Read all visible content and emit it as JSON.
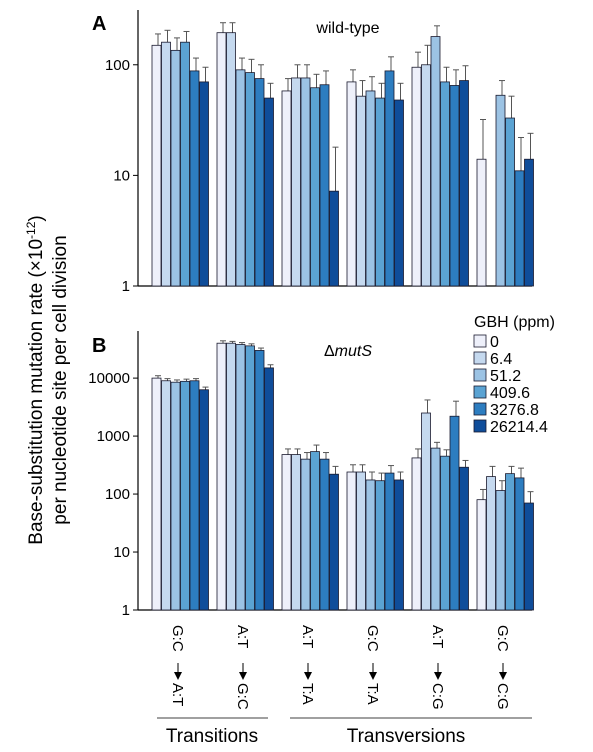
{
  "y_axis_label_line1": "Base-substitution mutation rate (×10",
  "y_axis_label_exp": "-12",
  "y_axis_label_line1_end": ")",
  "y_axis_label_line2": "per nucleotide site per cell division",
  "legend": {
    "title": "GBH (ppm)",
    "entries": [
      "0",
      "6.4",
      "51.2",
      "409.6",
      "3276.8",
      "26214.4"
    ],
    "colors": [
      "#eef0fa",
      "#c5d9ef",
      "#9cc3e4",
      "#5ba3d3",
      "#2d7dc0",
      "#0f4d9a"
    ]
  },
  "x_categories": [
    {
      "from": "G:C",
      "to": "A:T"
    },
    {
      "from": "A:T",
      "to": "G:C"
    },
    {
      "from": "A:T",
      "to": "T:A"
    },
    {
      "from": "G:C",
      "to": "T:A"
    },
    {
      "from": "A:T",
      "to": "C:G"
    },
    {
      "from": "G:C",
      "to": "C:G"
    }
  ],
  "groups": {
    "transitions": "Transitions",
    "transversions": "Transversions"
  },
  "chart_data": [
    {
      "type": "bar",
      "panel_label": "A",
      "title": "wild-type",
      "title_italic_part": "",
      "y_scale": "log",
      "ylim": [
        1,
        300
      ],
      "yticks": [
        "1",
        "10",
        "100"
      ],
      "categories": [
        "G:C→A:T",
        "A:T→G:C",
        "A:T→T:A",
        "G:C→T:A",
        "A:T→C:G",
        "G:C→C:G"
      ],
      "series": [
        {
          "name": "0",
          "values": [
            150,
            195,
            58,
            70,
            95,
            14
          ],
          "errors": [
            190,
            240,
            75,
            90,
            130,
            32
          ]
        },
        {
          "name": "6.4",
          "values": [
            160,
            195,
            76,
            52,
            100,
            null
          ],
          "errors": [
            205,
            240,
            100,
            72,
            150,
            null
          ]
        },
        {
          "name": "51.2",
          "values": [
            135,
            90,
            76,
            58,
            180,
            53
          ],
          "errors": [
            175,
            115,
            100,
            78,
            225,
            72
          ]
        },
        {
          "name": "409.6",
          "values": [
            160,
            85,
            62,
            50,
            70,
            33
          ],
          "errors": [
            200,
            112,
            82,
            68,
            95,
            52
          ]
        },
        {
          "name": "3276.8",
          "values": [
            88,
            75,
            66,
            88,
            65,
            11
          ],
          "errors": [
            115,
            100,
            88,
            118,
            90,
            22
          ]
        },
        {
          "name": "26214.4",
          "values": [
            70,
            50,
            7.2,
            48,
            72,
            14
          ],
          "errors": [
            95,
            68,
            18,
            68,
            98,
            24
          ]
        }
      ]
    },
    {
      "type": "bar",
      "panel_label": "B",
      "title": "mutS",
      "title_prefix": "Δ",
      "y_scale": "log",
      "ylim": [
        1,
        60000
      ],
      "yticks": [
        "1",
        "10",
        "100",
        "1000",
        "10000"
      ],
      "categories": [
        "G:C→A:T",
        "A:T→G:C",
        "A:T→T:A",
        "G:C→T:A",
        "A:T→C:G",
        "G:C→C:G"
      ],
      "series": [
        {
          "name": "0",
          "values": [
            10000,
            40000,
            480,
            240,
            420,
            80
          ],
          "errors": [
            11000,
            44000,
            600,
            320,
            600,
            120
          ]
        },
        {
          "name": "6.4",
          "values": [
            9000,
            40000,
            480,
            240,
            2500,
            200
          ],
          "errors": [
            9800,
            43000,
            600,
            320,
            4200,
            300
          ]
        },
        {
          "name": "51.2",
          "values": [
            8500,
            38000,
            400,
            175,
            620,
            115
          ],
          "errors": [
            9300,
            41000,
            520,
            240,
            780,
            170
          ]
        },
        {
          "name": "409.6",
          "values": [
            8800,
            36000,
            540,
            170,
            450,
            225
          ],
          "errors": [
            9600,
            39000,
            700,
            230,
            580,
            300
          ]
        },
        {
          "name": "3276.8",
          "values": [
            9000,
            30000,
            400,
            230,
            2200,
            190
          ],
          "errors": [
            9800,
            33000,
            520,
            310,
            4000,
            280
          ]
        },
        {
          "name": "26214.4",
          "values": [
            6300,
            15000,
            220,
            175,
            290,
            70
          ],
          "errors": [
            7000,
            17000,
            300,
            240,
            380,
            110
          ]
        }
      ]
    }
  ]
}
